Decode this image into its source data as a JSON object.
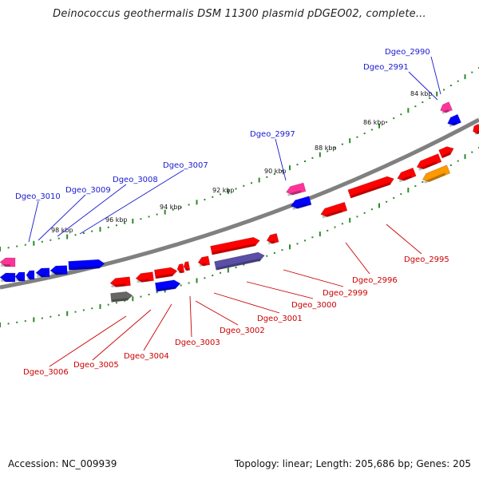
{
  "header": {
    "title": "Deinococcus geothermalis DSM 11300 plasmid pDGEO02, complete..."
  },
  "footer": {
    "accession": "Accession: NC_009939",
    "summary": "Topology: linear; Length: 205,686 bp; Genes: 205"
  },
  "colors": {
    "forward": "#ff0000",
    "reverse": "#0000ff",
    "pink": "#ff3399",
    "orange": "#ff9900",
    "purple": "#5a4fa6",
    "gray": "#666666",
    "backbone": "#808080",
    "scale": "#2a8a2a",
    "label_forward": "#cc0000",
    "label_reverse": "#1a1ad0"
  },
  "scale_labels": [
    "98 kbp",
    "96 kbp",
    "94 kbp",
    "92 kbp",
    "90 kbp",
    "88 kbp",
    "86 kbp",
    "84 kbp"
  ],
  "gene_labels": {
    "reverse": [
      "Dgeo_3010",
      "Dgeo_3009",
      "Dgeo_3008",
      "Dgeo_3007",
      "Dgeo_2997",
      "Dgeo_2991",
      "Dgeo_2990"
    ],
    "forward": [
      "Dgeo_3006",
      "Dgeo_3005",
      "Dgeo_3004",
      "Dgeo_3003",
      "Dgeo_3002",
      "Dgeo_3001",
      "Dgeo_3000",
      "Dgeo_2999",
      "Dgeo_2996",
      "Dgeo_2995"
    ]
  }
}
